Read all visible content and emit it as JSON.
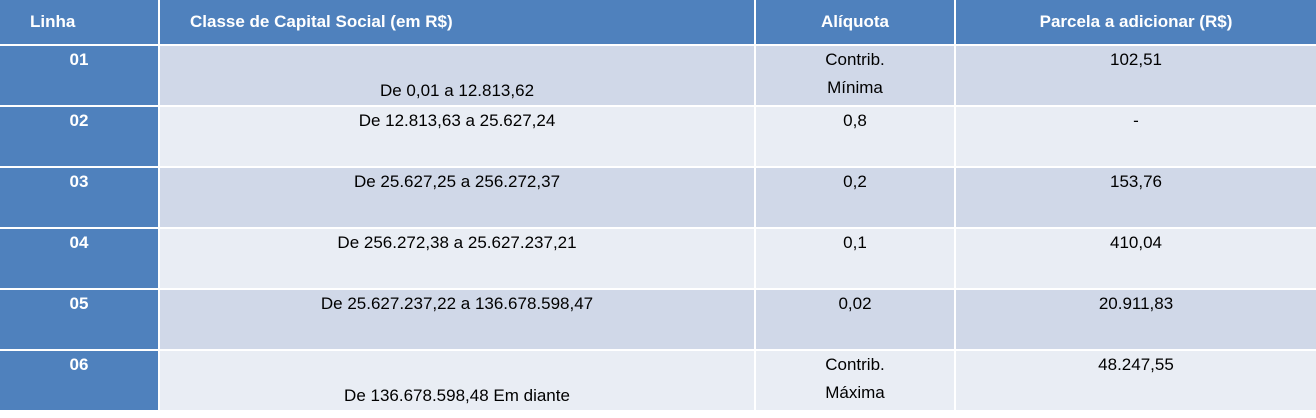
{
  "table": {
    "header": [
      "Linha",
      "Classe de Capital Social (em R$)",
      "Alíquota",
      "Parcela a adicionar (R$)"
    ],
    "rows": [
      [
        "01",
        "De 0,01 a 12.813,62",
        "Contrib.\nMínima",
        "102,51"
      ],
      [
        "02",
        "De 12.813,63 a 25.627,24",
        "0,8",
        "-"
      ],
      [
        "03",
        "De 25.627,25 a 256.272,37",
        "0,2",
        "153,76"
      ],
      [
        "04",
        "De 256.272,38 a 25.627.237,21",
        "0,1",
        "410,04"
      ],
      [
        "05",
        "De 25.627.237,22 a 136.678.598,47",
        "0,02",
        "20.911,83"
      ],
      [
        "06",
        "De 136.678.598,48 Em diante",
        "Contrib.\nMáxima",
        "48.247,55"
      ]
    ]
  }
}
